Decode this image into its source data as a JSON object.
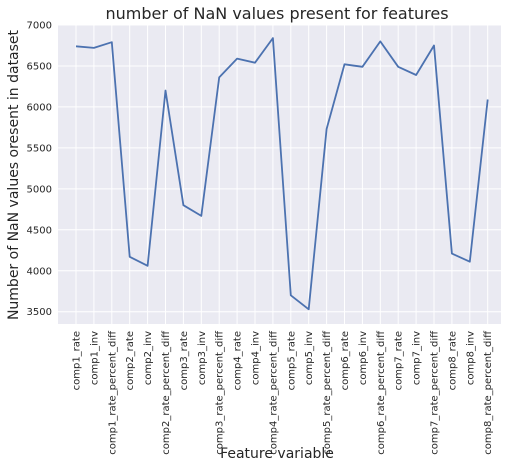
{
  "chart_data": {
    "type": "line",
    "title": "number of NaN values present for features",
    "xlabel": "Feature variable",
    "ylabel": "Number of NaN values oresent in dataset",
    "categories": [
      "comp1_rate",
      "comp1_inv",
      "comp1_rate_percent_diff",
      "comp2_rate",
      "comp2_inv",
      "comp2_rate_percent_diff",
      "comp3_rate",
      "comp3_inv",
      "comp3_rate_percent_diff",
      "comp4_rate",
      "comp4_inv",
      "comp4_rate_percent_diff",
      "comp5_rate",
      "comp5_inv",
      "comp5_rate_percent_diff",
      "comp6_rate",
      "comp6_inv",
      "comp6_rate_percent_diff",
      "comp7_rate",
      "comp7_inv",
      "comp7_rate_percent_diff",
      "comp8_rate",
      "comp8_inv",
      "comp8_rate_percent_diff"
    ],
    "values": [
      6740,
      6720,
      6790,
      4170,
      4060,
      6200,
      4800,
      4670,
      6360,
      6590,
      6540,
      6840,
      3700,
      3530,
      5730,
      6520,
      6490,
      6800,
      6490,
      6390,
      6750,
      4210,
      4110,
      6090
    ],
    "ylim": [
      3350,
      7000
    ],
    "yticks": [
      3500,
      4000,
      4500,
      5000,
      5500,
      6000,
      6500,
      7000
    ],
    "grid": true,
    "line_color": "#4c72b0",
    "background_color": "#eaeaf2",
    "grid_color": "#ffffff"
  }
}
